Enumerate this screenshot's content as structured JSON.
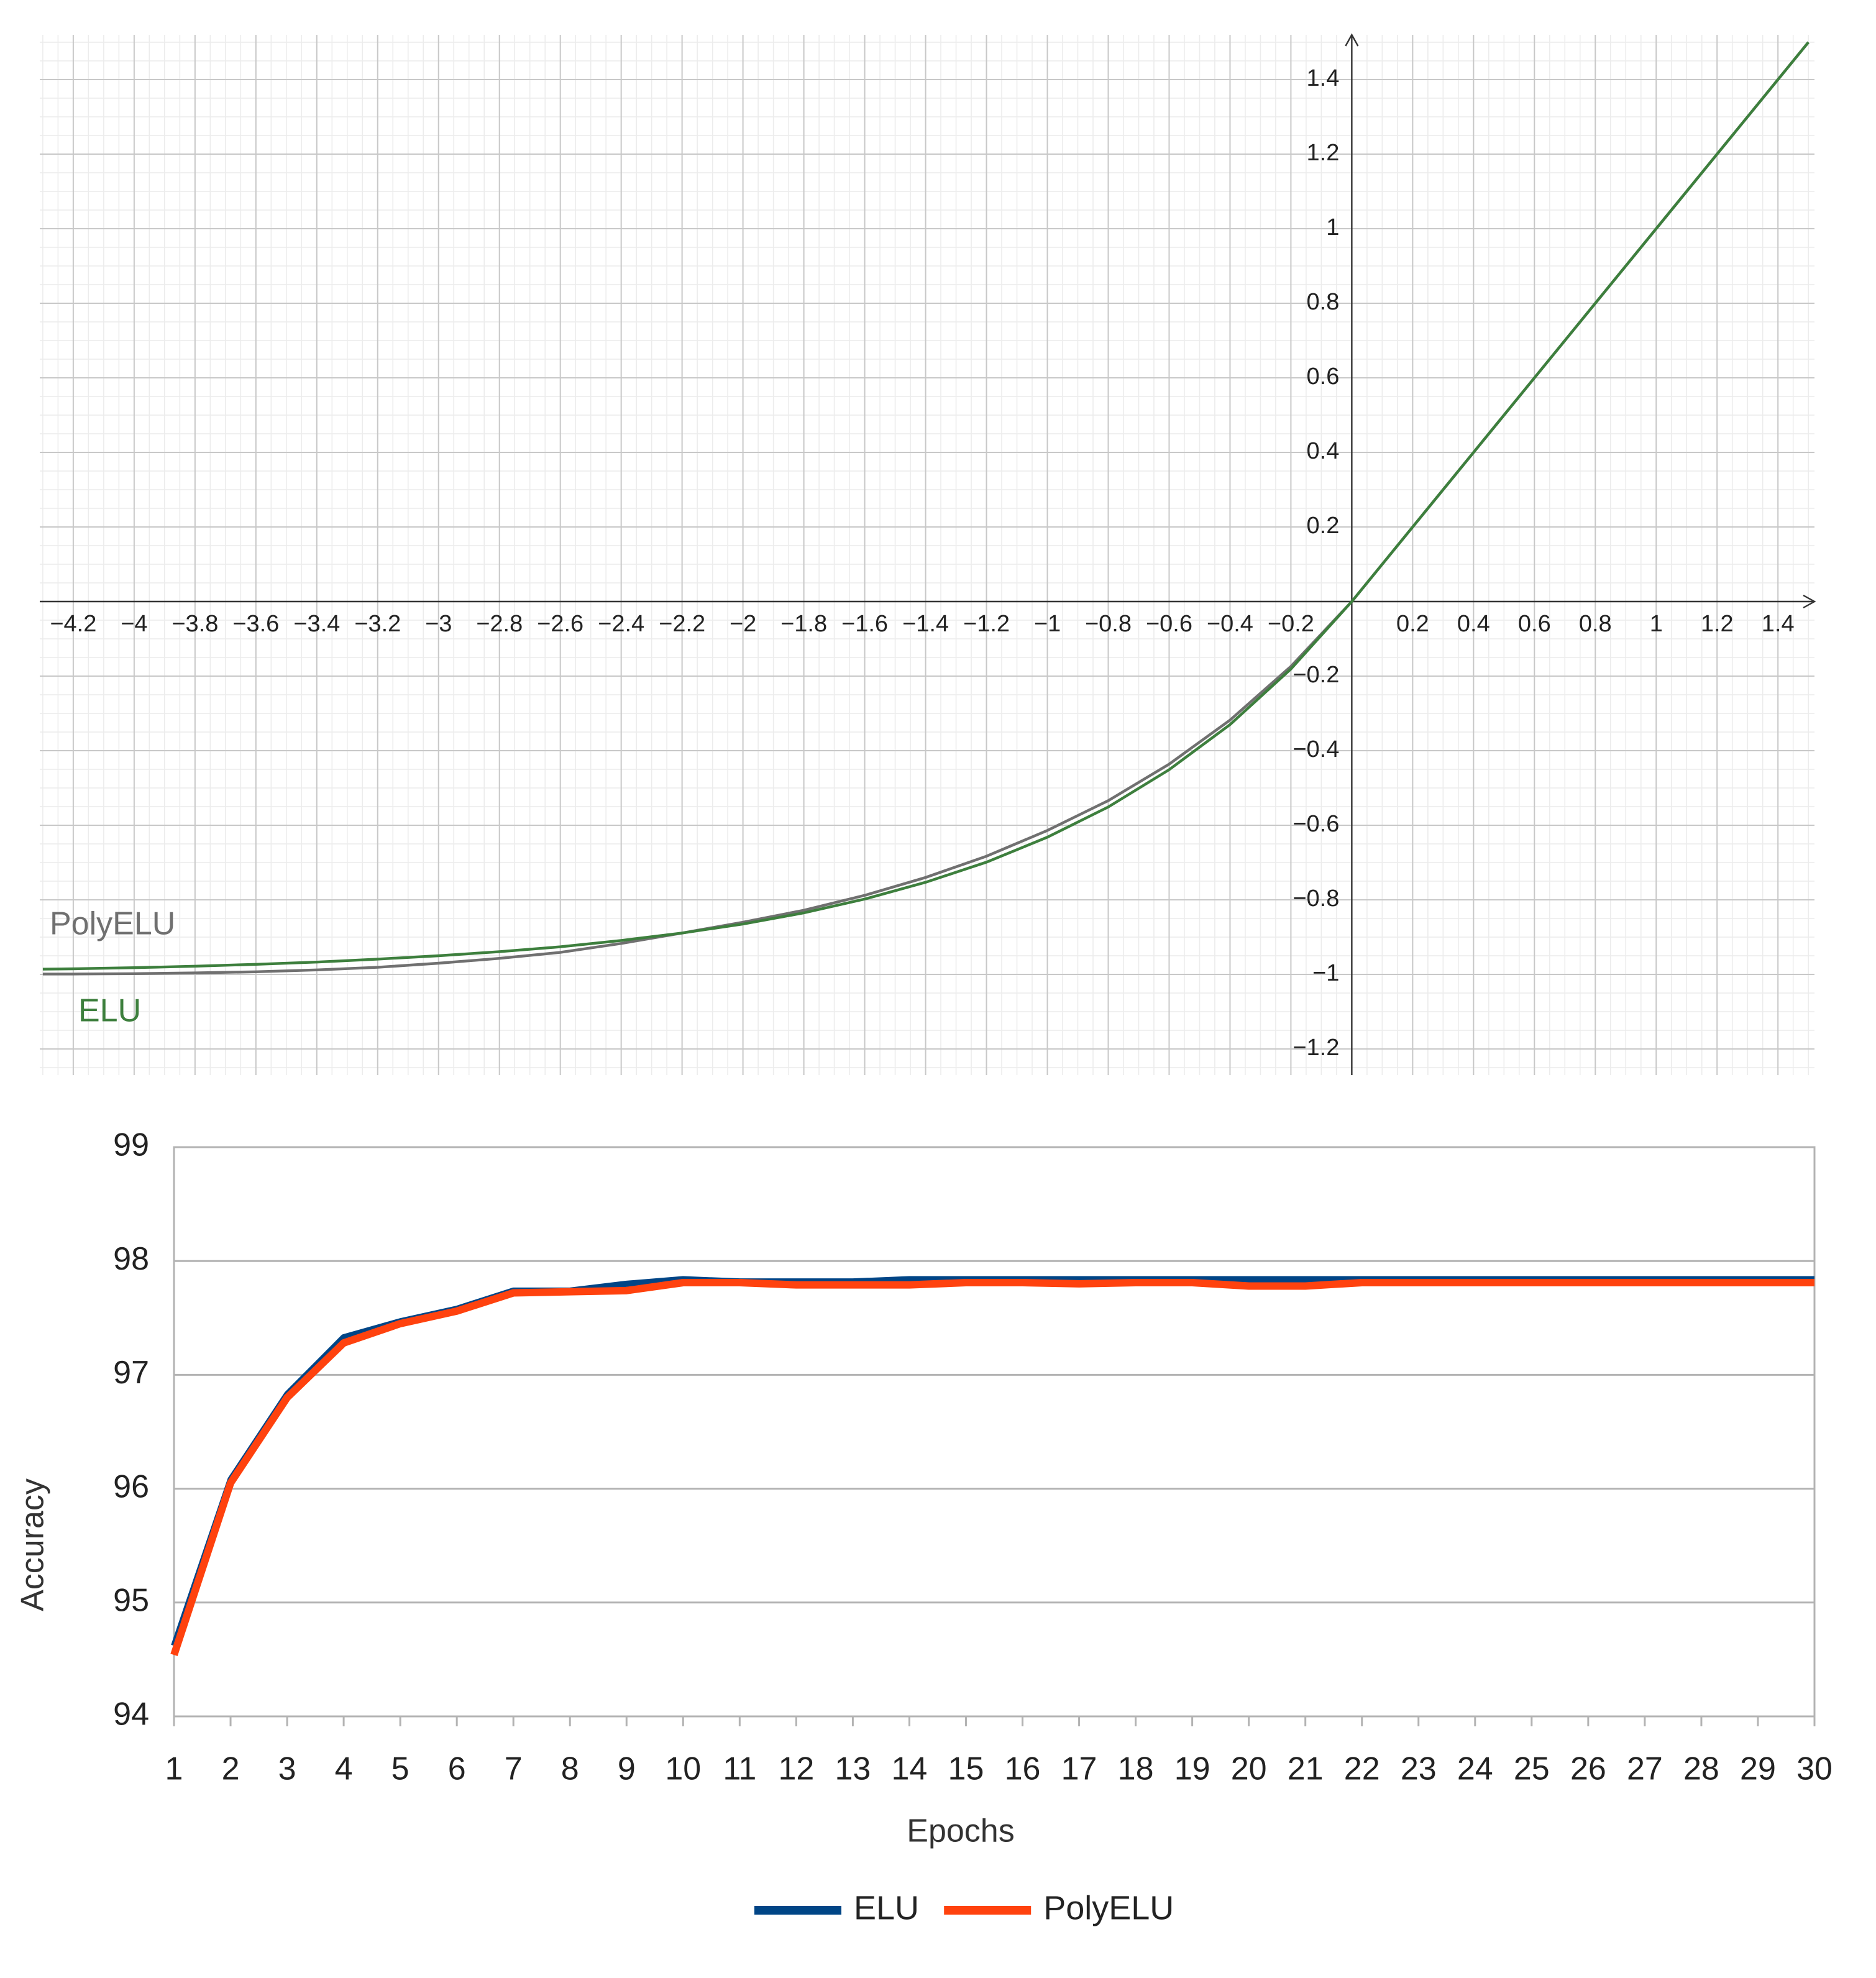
{
  "chart_data": [
    {
      "type": "line",
      "x": [
        -4.3,
        -4.2,
        -4,
        -3.8,
        -3.6,
        -3.4,
        -3.2,
        -3,
        -2.8,
        -2.6,
        -2.4,
        -2.2,
        -2,
        -1.8,
        -1.6,
        -1.4,
        -1.2,
        -1,
        -0.8,
        -0.6,
        -0.4,
        -0.2,
        0,
        0.2,
        0.4,
        0.6,
        0.8,
        1,
        1.2,
        1.4,
        1.5
      ],
      "series": [
        {
          "name": "PolyELU",
          "color": "#707070",
          "values": [
            -0.999,
            -0.999,
            -0.998,
            -0.996,
            -0.993,
            -0.988,
            -0.981,
            -0.97,
            -0.957,
            -0.941,
            -0.917,
            -0.889,
            -0.86,
            -0.828,
            -0.788,
            -0.74,
            -0.683,
            -0.614,
            -0.534,
            -0.436,
            -0.318,
            -0.174,
            0,
            0.2,
            0.4,
            0.6,
            0.8,
            1,
            1.2,
            1.4,
            1.5
          ]
        },
        {
          "name": "ELU",
          "color": "#3d7f3d",
          "values": [
            -0.986,
            -0.985,
            -0.982,
            -0.978,
            -0.973,
            -0.967,
            -0.959,
            -0.95,
            -0.939,
            -0.926,
            -0.909,
            -0.889,
            -0.865,
            -0.835,
            -0.798,
            -0.753,
            -0.699,
            -0.632,
            -0.551,
            -0.451,
            -0.33,
            -0.181,
            0,
            0.2,
            0.4,
            0.6,
            0.8,
            1,
            1.2,
            1.4,
            1.5
          ]
        }
      ],
      "xlim": [
        -4.31,
        1.52
      ],
      "ylim": [
        -1.27,
        1.52
      ],
      "xticks": [
        {
          "value": -4.2,
          "label": "−4.2"
        },
        {
          "value": -4,
          "label": "−4"
        },
        {
          "value": -3.8,
          "label": "−3.8"
        },
        {
          "value": -3.6,
          "label": "−3.6"
        },
        {
          "value": -3.4,
          "label": "−3.4"
        },
        {
          "value": -3.2,
          "label": "−3.2"
        },
        {
          "value": -3,
          "label": "−3"
        },
        {
          "value": -2.8,
          "label": "−2.8"
        },
        {
          "value": -2.6,
          "label": "−2.6"
        },
        {
          "value": -2.4,
          "label": "−2.4"
        },
        {
          "value": -2.2,
          "label": "−2.2"
        },
        {
          "value": -2,
          "label": "−2"
        },
        {
          "value": -1.8,
          "label": "−1.8"
        },
        {
          "value": -1.6,
          "label": "−1.6"
        },
        {
          "value": -1.4,
          "label": "−1.4"
        },
        {
          "value": -1.2,
          "label": "−1.2"
        },
        {
          "value": -1,
          "label": "−1"
        },
        {
          "value": -0.8,
          "label": "−0.8"
        },
        {
          "value": -0.6,
          "label": "−0.6"
        },
        {
          "value": -0.4,
          "label": "−0.4"
        },
        {
          "value": -0.2,
          "label": "−0.2"
        },
        0.2,
        0.4,
        0.6,
        0.8,
        1,
        1.2,
        1.4
      ],
      "yticks": [
        {
          "value": -1.2,
          "label": "−1.2"
        },
        {
          "value": -1,
          "label": "−1"
        },
        {
          "value": -0.8,
          "label": "−0.8"
        },
        {
          "value": -0.6,
          "label": "−0.6"
        },
        {
          "value": -0.4,
          "label": "−0.4"
        },
        {
          "value": -0.2,
          "label": "−0.2"
        },
        0.2,
        0.4,
        0.6,
        0.8,
        1,
        1.2,
        1.4
      ],
      "grid": true
    },
    {
      "type": "line",
      "categories": [
        "1",
        "2",
        "3",
        "4",
        "5",
        "6",
        "7",
        "8",
        "9",
        "10",
        "11",
        "12",
        "13",
        "14",
        "15",
        "16",
        "17",
        "18",
        "19",
        "20",
        "21",
        "22",
        "23",
        "24",
        "25",
        "26",
        "27",
        "28",
        "29",
        "30"
      ],
      "series": [
        {
          "name": "ELU",
          "color": "#004586",
          "values": [
            94.62,
            96.08,
            96.83,
            97.33,
            97.47,
            97.58,
            97.74,
            97.74,
            97.8,
            97.84,
            97.82,
            97.82,
            97.82,
            97.84,
            97.84,
            97.84,
            97.84,
            97.84,
            97.84,
            97.84,
            97.84,
            97.84,
            97.84,
            97.84,
            97.84,
            97.84,
            97.84,
            97.84,
            97.84,
            97.84
          ]
        },
        {
          "name": "PolyELU",
          "color": "#ff420e",
          "values": [
            94.54,
            96.05,
            96.8,
            97.28,
            97.45,
            97.56,
            97.72,
            97.73,
            97.74,
            97.81,
            97.81,
            97.79,
            97.79,
            97.79,
            97.81,
            97.81,
            97.8,
            97.81,
            97.81,
            97.78,
            97.78,
            97.81,
            97.81,
            97.81,
            97.81,
            97.81,
            97.81,
            97.81,
            97.81,
            97.81
          ]
        }
      ],
      "xlabel": "Epochs",
      "ylabel": "Accuracy",
      "ylim": [
        94,
        99
      ],
      "yticks": [
        94,
        95,
        96,
        97,
        98,
        99
      ],
      "grid": true,
      "legend": "bottom"
    }
  ]
}
